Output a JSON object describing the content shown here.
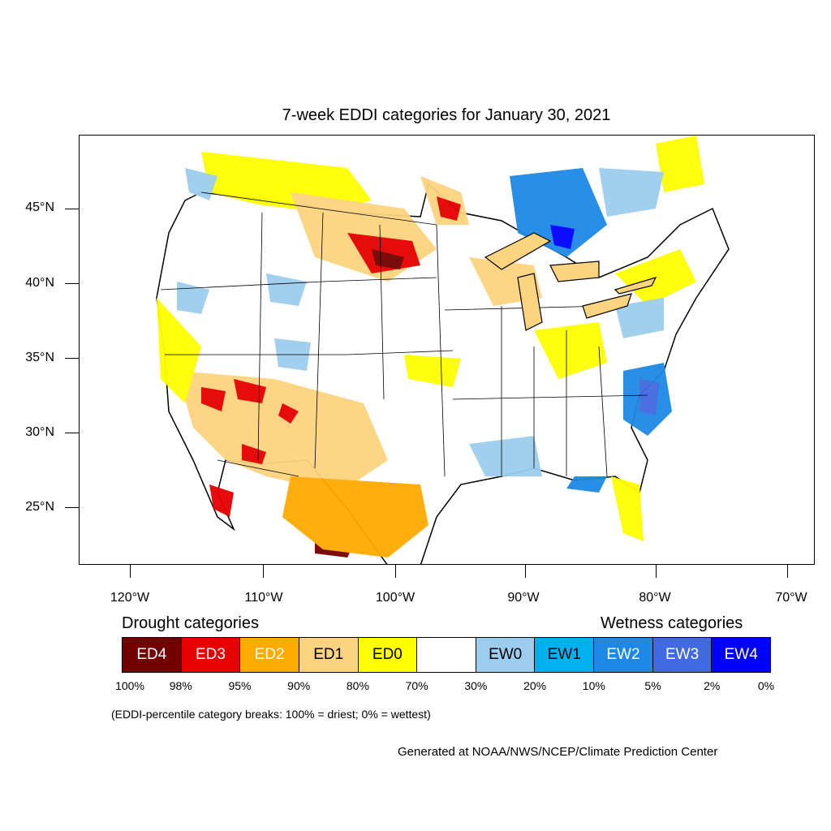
{
  "title": "7-week EDDI categories for January 30, 2021",
  "lat_labels": [
    "45°N",
    "40°N",
    "35°N",
    "30°N",
    "25°N"
  ],
  "lon_labels": [
    "120°W",
    "110°W",
    "100°W",
    "90°W",
    "80°W",
    "70°W"
  ],
  "legend": {
    "drought_title": "Drought categories",
    "wetness_title": "Wetness categories",
    "categories": [
      {
        "label": "ED4",
        "color": "#730000",
        "text_color": "#ffffff"
      },
      {
        "label": "ED3",
        "color": "#e60000",
        "text_color": "#ffffff"
      },
      {
        "label": "ED2",
        "color": "#ffaa00",
        "text_color": "#ffffff"
      },
      {
        "label": "ED1",
        "color": "#fcd37f",
        "text_color": "#000000"
      },
      {
        "label": "ED0",
        "color": "#ffff00",
        "text_color": "#000000"
      },
      {
        "label": "",
        "color": "#ffffff",
        "text_color": "#000000"
      },
      {
        "label": "EW0",
        "color": "#9ccdee",
        "text_color": "#000000"
      },
      {
        "label": "EW1",
        "color": "#00b0f0",
        "text_color": "#000000"
      },
      {
        "label": "EW2",
        "color": "#1e88e5",
        "text_color": "#ffffff"
      },
      {
        "label": "EW3",
        "color": "#4169e1",
        "text_color": "#ffffff"
      },
      {
        "label": "EW4",
        "color": "#0000ff",
        "text_color": "#ffffff"
      }
    ],
    "percentiles": [
      "100%",
      "98%",
      "95%",
      "90%",
      "80%",
      "70%",
      "30%",
      "20%",
      "10%",
      "5%",
      "2%",
      "0%"
    ]
  },
  "note": "(EDDI-percentile category breaks: 100% = driest; 0% = wettest)",
  "credit": "Generated at NOAA/NWS/NCEP/Climate Prediction Center"
}
